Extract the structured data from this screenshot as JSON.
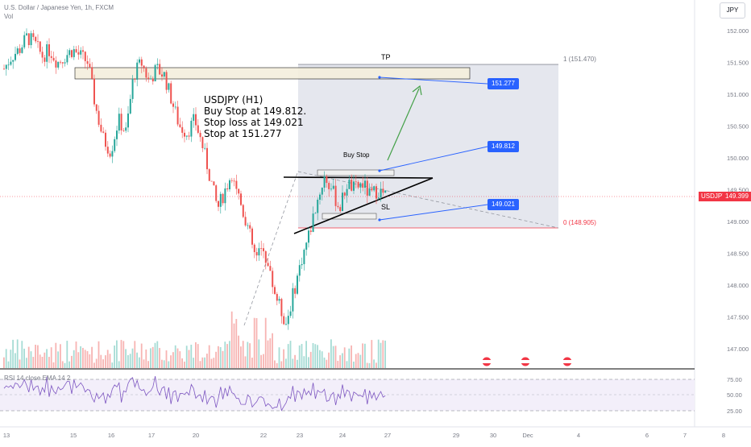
{
  "header": {
    "title": "U.S. Dollar / Japanese Yen, 1h, FXCM",
    "volume_label": "Vol"
  },
  "unit_button": "JPY",
  "analysis_note": {
    "lines": [
      "USDJPY (H1)",
      "Buy Stop at 149.812.",
      "Stop loss at 149.021",
      "Stop at 151.277"
    ]
  },
  "annotations": {
    "tp_label": "TP",
    "sl_label": "SL",
    "buy_stop_label": "Buy Stop",
    "fib_top": "1 (151.470)",
    "fib_bottom": "0 (148.905)"
  },
  "price_tags": {
    "tp": "151.277",
    "entry": "149.812",
    "sl": "149.021"
  },
  "current_price": {
    "symbol": "USDJPY",
    "value": "149.399"
  },
  "rsi": {
    "label": "RSI 14 close EMA 14 2",
    "ticks": [
      "75.00",
      "50.00",
      "25.00"
    ]
  },
  "colors": {
    "up": "#26a69a",
    "down": "#ef5350",
    "accent": "#2962ff",
    "zone": "#e0e3eb",
    "rsi_line": "#7e57c2",
    "current": "#f23645"
  },
  "chart_data": {
    "type": "candlestick",
    "title": "U.S. Dollar / Japanese Yen, 1h, FXCM",
    "ylim": [
      146.75,
      152.25
    ],
    "y_ticks": [
      "152.000",
      "151.500",
      "151.000",
      "150.500",
      "150.000",
      "149.500",
      "149.000",
      "148.500",
      "148.000",
      "147.500",
      "147.000"
    ],
    "x_ticks": [
      "13",
      "15",
      "16",
      "17",
      "20",
      "22",
      "23",
      "24",
      "27",
      "29",
      "30",
      "Dec",
      "4",
      "6",
      "7",
      "8"
    ],
    "approx_closes": [
      151.4,
      151.6,
      151.7,
      151.9,
      151.8,
      151.6,
      151.7,
      151.5,
      151.6,
      151.7,
      151.6,
      151.5,
      150.8,
      150.3,
      150.1,
      150.6,
      150.4,
      151.3,
      151.5,
      151.2,
      151.4,
      151.3,
      150.9,
      150.5,
      150.4,
      150.6,
      150.2,
      149.7,
      149.2,
      149.5,
      149.8,
      149.3,
      148.9,
      148.4,
      148.6,
      148.1,
      147.7,
      147.4,
      147.9,
      148.4,
      148.8,
      149.3,
      149.7,
      149.5,
      149.2,
      149.6,
      149.5,
      149.6,
      149.4,
      149.5,
      149.4
    ]
  }
}
